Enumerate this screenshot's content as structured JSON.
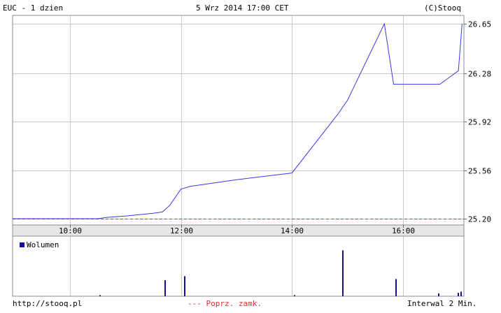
{
  "header": {
    "left": "EUC - 1 dzien",
    "center": "5 Wrz 2014 17:00 CET",
    "right": "(C)Stooq"
  },
  "footer": {
    "left": "http://stooq.pl",
    "center": "--- Poprz. zamk.",
    "right": "Interwal 2 Min."
  },
  "colors": {
    "price_line": "#3a3ae8",
    "prev_close": "#e03030",
    "volume": "#1010a0",
    "grid": "#c8c8c8",
    "axis_band": "#e6e6e6"
  },
  "chart_data": {
    "type": "line",
    "x_ticks": [
      "10:00",
      "12:00",
      "14:00",
      "16:00"
    ],
    "y_ticks": [
      "26.65",
      "26.28",
      "25.92",
      "25.56",
      "25.20"
    ],
    "ylim": [
      25.2,
      26.65
    ],
    "prev_close": 25.2,
    "series": [
      {
        "x": [
          "08:58",
          "09:30",
          "10:00",
          "10:30",
          "10:40",
          "11:00",
          "11:30",
          "11:40",
          "11:48",
          "12:00",
          "12:10",
          "13:00",
          "14:00",
          "14:50",
          "15:00",
          "15:40",
          "15:50",
          "16:00",
          "16:40",
          "17:00",
          "17:04"
        ],
        "values": [
          25.2,
          25.2,
          25.2,
          25.2,
          25.21,
          25.22,
          25.24,
          25.25,
          25.3,
          25.42,
          25.44,
          25.49,
          25.54,
          25.98,
          26.08,
          26.65,
          26.2,
          26.2,
          26.2,
          26.3,
          26.65
        ]
      }
    ],
    "volume": {
      "legend": "Wolumen",
      "x": [
        "10:32",
        "11:42",
        "12:03",
        "14:02",
        "14:54",
        "15:52",
        "16:38",
        "16:59",
        "17:02"
      ],
      "values": [
        2,
        28,
        35,
        2,
        80,
        30,
        5,
        6,
        8
      ]
    }
  }
}
